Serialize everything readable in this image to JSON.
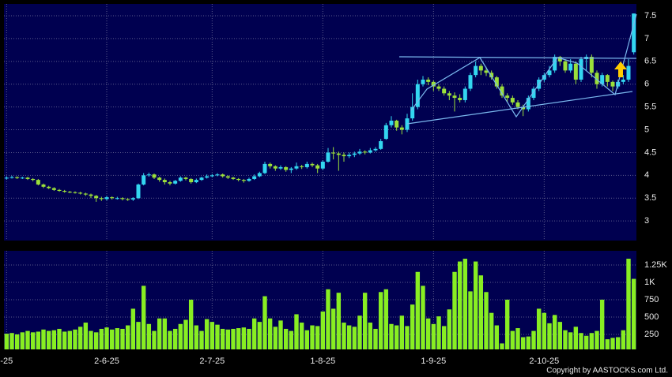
{
  "chart_data": [
    {
      "type": "candlestick",
      "open": [
        3.93,
        3.95,
        3.96,
        3.94,
        3.95,
        3.92,
        3.9,
        3.8,
        3.75,
        3.72,
        3.68,
        3.66,
        3.64,
        3.63,
        3.62,
        3.6,
        3.58,
        3.55,
        3.5,
        3.48,
        3.52,
        3.5,
        3.5,
        3.48,
        3.47,
        3.5,
        3.8,
        4.0,
        4.02,
        3.95,
        3.9,
        3.85,
        3.82,
        3.88,
        3.95,
        3.92,
        3.85,
        3.9,
        3.95,
        3.98,
        4.0,
        4.02,
        3.98,
        3.95,
        3.92,
        3.9,
        3.88,
        3.92,
        3.98,
        4.05,
        4.25,
        4.2,
        4.15,
        4.18,
        4.12,
        4.15,
        4.2,
        4.18,
        4.25,
        4.22,
        4.15,
        4.3,
        4.5,
        4.48,
        4.45,
        4.42,
        4.45,
        4.48,
        4.52,
        4.5,
        4.55,
        4.58,
        4.8,
        5.1,
        5.2,
        5.05,
        5.0,
        5.25,
        5.5,
        6.0,
        6.1,
        6.05,
        5.95,
        5.9,
        5.8,
        5.75,
        5.7,
        5.65,
        5.9,
        6.2,
        6.4,
        6.3,
        6.25,
        6.15,
        5.95,
        5.75,
        5.7,
        5.6,
        5.5,
        5.45,
        5.7,
        5.9,
        6.1,
        6.2,
        6.3,
        6.6,
        6.5,
        6.3,
        6.45,
        6.1,
        6.55,
        6.6,
        6.25,
        6.0,
        6.2,
        6.05,
        5.95,
        6.05,
        6.1,
        6.7
      ],
      "high": [
        3.98,
        3.99,
        3.98,
        3.97,
        3.97,
        3.94,
        3.92,
        3.82,
        3.77,
        3.74,
        3.7,
        3.68,
        3.66,
        3.65,
        3.64,
        3.62,
        3.6,
        3.57,
        3.53,
        3.55,
        3.54,
        3.53,
        3.52,
        3.5,
        3.52,
        3.82,
        4.05,
        4.06,
        4.04,
        3.97,
        3.93,
        3.88,
        3.9,
        3.98,
        3.97,
        3.94,
        3.93,
        3.97,
        4.02,
        4.03,
        4.05,
        4.04,
        4.0,
        3.97,
        3.94,
        3.92,
        3.95,
        4.02,
        4.08,
        4.3,
        4.28,
        4.22,
        4.22,
        4.2,
        4.18,
        4.28,
        4.23,
        4.3,
        4.28,
        4.25,
        4.33,
        4.6,
        4.62,
        4.52,
        4.5,
        4.5,
        4.52,
        4.58,
        4.55,
        4.6,
        4.62,
        4.8,
        5.15,
        5.3,
        5.22,
        5.1,
        5.35,
        5.8,
        6.1,
        6.18,
        6.15,
        6.08,
        6.0,
        5.95,
        5.85,
        5.82,
        5.78,
        5.95,
        6.25,
        6.5,
        6.45,
        6.38,
        6.3,
        6.18,
        6.0,
        5.8,
        5.75,
        5.65,
        5.55,
        5.75,
        5.95,
        6.15,
        6.25,
        6.4,
        6.65,
        6.62,
        6.55,
        6.55,
        6.5,
        6.6,
        6.65,
        6.65,
        6.3,
        6.25,
        6.22,
        6.08,
        6.1,
        6.2,
        6.55,
        7.55
      ],
      "low": [
        3.91,
        3.93,
        3.92,
        3.92,
        3.9,
        3.87,
        3.78,
        3.72,
        3.7,
        3.66,
        3.64,
        3.62,
        3.61,
        3.6,
        3.58,
        3.55,
        3.5,
        3.42,
        3.44,
        3.45,
        3.47,
        3.47,
        3.45,
        3.44,
        3.44,
        3.48,
        3.78,
        3.97,
        3.92,
        3.86,
        3.8,
        3.78,
        3.8,
        3.86,
        3.89,
        3.82,
        3.83,
        3.88,
        3.93,
        3.96,
        3.98,
        3.95,
        3.92,
        3.9,
        3.87,
        3.84,
        3.86,
        3.9,
        3.96,
        4.03,
        4.15,
        4.1,
        4.12,
        4.08,
        4.05,
        4.12,
        4.14,
        4.15,
        4.18,
        4.05,
        4.12,
        4.28,
        4.35,
        4.1,
        4.3,
        4.38,
        4.4,
        4.45,
        4.46,
        4.48,
        4.52,
        4.56,
        4.78,
        5.05,
        4.98,
        4.9,
        4.95,
        5.2,
        5.45,
        5.95,
        5.98,
        5.85,
        5.85,
        5.75,
        5.65,
        5.4,
        5.6,
        5.6,
        5.85,
        6.15,
        6.2,
        6.18,
        6.1,
        5.9,
        5.7,
        5.6,
        5.55,
        5.45,
        5.3,
        5.4,
        5.65,
        5.85,
        6.05,
        6.15,
        6.25,
        6.4,
        6.25,
        6.25,
        6.0,
        6.05,
        6.3,
        6.15,
        5.9,
        5.95,
        5.95,
        5.85,
        5.9,
        6.0,
        6.05,
        6.65
      ],
      "close": [
        3.95,
        3.96,
        3.94,
        3.95,
        3.92,
        3.9,
        3.8,
        3.75,
        3.72,
        3.68,
        3.66,
        3.64,
        3.63,
        3.62,
        3.6,
        3.58,
        3.55,
        3.5,
        3.48,
        3.52,
        3.5,
        3.5,
        3.48,
        3.47,
        3.5,
        3.8,
        4.0,
        4.02,
        3.95,
        3.9,
        3.85,
        3.82,
        3.88,
        3.95,
        3.92,
        3.85,
        3.9,
        3.95,
        3.98,
        4.0,
        4.02,
        3.98,
        3.95,
        3.92,
        3.9,
        3.88,
        3.92,
        3.98,
        4.05,
        4.25,
        4.2,
        4.15,
        4.18,
        4.12,
        4.15,
        4.2,
        4.18,
        4.25,
        4.22,
        4.15,
        4.3,
        4.5,
        4.48,
        4.45,
        4.42,
        4.45,
        4.48,
        4.52,
        4.5,
        4.55,
        4.58,
        4.75,
        5.1,
        5.2,
        5.05,
        5.0,
        5.25,
        5.5,
        6.0,
        6.1,
        6.05,
        5.95,
        5.9,
        5.8,
        5.75,
        5.7,
        5.65,
        5.9,
        6.2,
        6.4,
        6.3,
        6.25,
        6.15,
        5.95,
        5.75,
        5.7,
        5.6,
        5.5,
        5.45,
        5.7,
        5.9,
        6.1,
        6.2,
        6.3,
        6.6,
        6.5,
        6.3,
        6.45,
        6.1,
        6.55,
        6.6,
        6.25,
        6.0,
        6.2,
        6.05,
        5.95,
        6.05,
        6.1,
        6.4,
        7.55
      ],
      "up_color": "#33d6f0",
      "down_color": "#9be03a",
      "xlim": [
        -0.5,
        119.5
      ],
      "ylim": [
        2.57,
        7.76
      ],
      "yticks": [
        3,
        3.5,
        4,
        4.5,
        5,
        5.5,
        6,
        6.5,
        7,
        7.5
      ],
      "grid": true
    },
    {
      "type": "bar",
      "values": [
        260,
        270,
        250,
        280,
        300,
        280,
        290,
        320,
        300,
        310,
        330,
        290,
        300,
        320,
        360,
        420,
        300,
        280,
        330,
        350,
        320,
        340,
        330,
        380,
        620,
        430,
        950,
        400,
        300,
        480,
        480,
        300,
        330,
        400,
        460,
        750,
        380,
        300,
        470,
        430,
        390,
        330,
        320,
        330,
        340,
        350,
        330,
        480,
        430,
        800,
        480,
        360,
        450,
        330,
        300,
        540,
        420,
        310,
        380,
        370,
        580,
        900,
        620,
        850,
        420,
        380,
        360,
        520,
        850,
        420,
        330,
        860,
        900,
        400,
        380,
        520,
        370,
        680,
        1150,
        950,
        480,
        400,
        510,
        370,
        610,
        1150,
        1300,
        1340,
        870,
        1300,
        1100,
        860,
        560,
        380,
        120,
        750,
        300,
        340,
        210,
        220,
        300,
        620,
        560,
        410,
        530,
        430,
        310,
        280,
        360,
        270,
        230,
        270,
        300,
        750,
        180,
        200,
        210,
        310,
        1340,
        1050
      ],
      "color": "#88ee22",
      "xlim": [
        -0.5,
        119.5
      ],
      "xticks": [
        {
          "value": 0,
          "label": "-25"
        },
        {
          "value": 19,
          "label": "2-6-25"
        },
        {
          "value": 39,
          "label": "2-7-25"
        },
        {
          "value": 60,
          "label": "1-8-25"
        },
        {
          "value": 81,
          "label": "1-9-25"
        },
        {
          "value": 102,
          "label": "2-10-25"
        }
      ],
      "ylim": [
        34,
        1454
      ],
      "yticks": [
        250,
        500,
        750,
        {
          "value": 1000,
          "label": "1K"
        },
        {
          "value": 1250,
          "label": "1.25K"
        }
      ],
      "grid": true,
      "footer": "Copyright by AASTOCKS.com Ltd."
    }
  ]
}
